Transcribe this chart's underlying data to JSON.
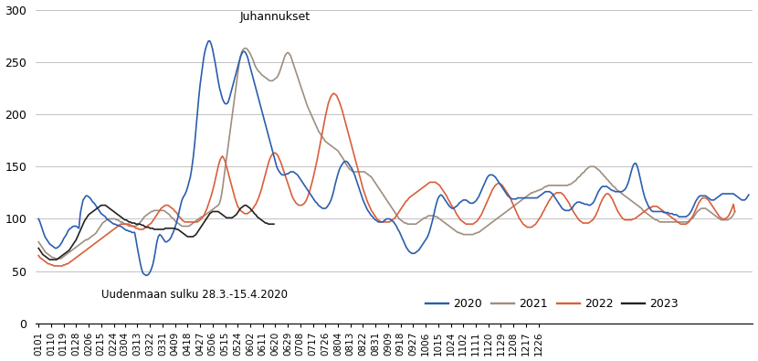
{
  "colors": {
    "2020": "#2B5EAE",
    "2021": "#9E8E7E",
    "2022": "#D95F3B",
    "2023": "#222222"
  },
  "annotation_juhannukset": "Juhannukset",
  "annotation_uudenmaan": "Uudenmaan sulku 28.3.-15.4.2020",
  "ylim": [
    0,
    300
  ],
  "yticks": [
    0,
    50,
    100,
    150,
    200,
    250,
    300
  ],
  "x_labels": [
    "0101",
    "0110",
    "0119",
    "0128",
    "0206",
    "0215",
    "0224",
    "0304",
    "0313",
    "0322",
    "0331",
    "0409",
    "0418",
    "0427",
    "0506",
    "0515",
    "0524",
    "0602",
    "0611",
    "0620",
    "0629",
    "0708",
    "0717",
    "0726",
    "0804",
    "0813",
    "0822",
    "0831",
    "0909",
    "0918",
    "0927",
    "1006",
    "1015",
    "1024",
    "1102",
    "1111",
    "1120",
    "1129",
    "1208",
    "1217",
    "1226"
  ],
  "background_color": "#ffffff",
  "grid_color": "#aaaaaa",
  "linewidth": 1.2,
  "series_2020": [
    100,
    97,
    93,
    89,
    85,
    82,
    80,
    78,
    76,
    75,
    74,
    73,
    72,
    72,
    73,
    74,
    76,
    78,
    81,
    83,
    85,
    88,
    90,
    91,
    92,
    93,
    93,
    93,
    92,
    91,
    105,
    112,
    118,
    120,
    122,
    122,
    121,
    120,
    118,
    116,
    115,
    113,
    111,
    109,
    107,
    105,
    104,
    103,
    102,
    100,
    99,
    98,
    97,
    96,
    95,
    95,
    94,
    94,
    93,
    93,
    92,
    91,
    90,
    89,
    89,
    88,
    88,
    87,
    87,
    87,
    80,
    72,
    65,
    58,
    52,
    48,
    47,
    46,
    46,
    47,
    49,
    52,
    56,
    62,
    70,
    78,
    83,
    85,
    84,
    82,
    80,
    78,
    78,
    79,
    80,
    82,
    85,
    88,
    92,
    96,
    101,
    107,
    113,
    118,
    121,
    123,
    126,
    130,
    135,
    140,
    148,
    158,
    170,
    185,
    200,
    215,
    228,
    238,
    248,
    257,
    263,
    267,
    270,
    270,
    267,
    262,
    255,
    248,
    240,
    232,
    225,
    220,
    215,
    212,
    210,
    210,
    211,
    215,
    220,
    225,
    230,
    235,
    240,
    245,
    250,
    255,
    258,
    260,
    260,
    258,
    255,
    250,
    245,
    240,
    235,
    230,
    225,
    220,
    215,
    210,
    205,
    200,
    195,
    190,
    185,
    180,
    175,
    170,
    165,
    160,
    155,
    150,
    147,
    145,
    143,
    142,
    142,
    142,
    143,
    143,
    144,
    145,
    145,
    145,
    144,
    143,
    142,
    140,
    138,
    136,
    134,
    132,
    130,
    128,
    126,
    124,
    122,
    120,
    118,
    116,
    115,
    113,
    112,
    111,
    110,
    110,
    110,
    111,
    113,
    115,
    118,
    122,
    127,
    133,
    138,
    143,
    147,
    150,
    152,
    154,
    155,
    155,
    154,
    152,
    150,
    148,
    145,
    142,
    138,
    134,
    130,
    126,
    122,
    118,
    115,
    112,
    109,
    107,
    105,
    103,
    102,
    100,
    99,
    98,
    97,
    97,
    97,
    97,
    98,
    99,
    100,
    100,
    100,
    99,
    98,
    97,
    95,
    93,
    90,
    88,
    85,
    82,
    79,
    76,
    73,
    71,
    69,
    68,
    67,
    67,
    67,
    68,
    69,
    70,
    72,
    74,
    76,
    78,
    80,
    82,
    85,
    89,
    94,
    99,
    105,
    111,
    116,
    120,
    122,
    123,
    122,
    120,
    118,
    116,
    114,
    112,
    111,
    110,
    110,
    111,
    112,
    113,
    115,
    116,
    117,
    118,
    118,
    118,
    117,
    116,
    115,
    115,
    115,
    116,
    117,
    119,
    121,
    124,
    127,
    130,
    133,
    136,
    139,
    141,
    142,
    142,
    142,
    141,
    140,
    138,
    136,
    134,
    132,
    130,
    128,
    126,
    124,
    122,
    121,
    120,
    119,
    119,
    119,
    119,
    120,
    120,
    120,
    120,
    120,
    120,
    120,
    120,
    120,
    120,
    120,
    120,
    120,
    120,
    120,
    121,
    122,
    123,
    124,
    125,
    126,
    126,
    126,
    126,
    125,
    124,
    122,
    120,
    118,
    116,
    114,
    112,
    110,
    109,
    108,
    108,
    108,
    108,
    109,
    110,
    112,
    114,
    115,
    116,
    116,
    116,
    115,
    115,
    114,
    114,
    114,
    113,
    113,
    114,
    115,
    117,
    120,
    123,
    126,
    128,
    130,
    131,
    131,
    131,
    131,
    130,
    129,
    128,
    127,
    127,
    126,
    126,
    126,
    126,
    126,
    126,
    127,
    128,
    130,
    133,
    137,
    142,
    147,
    151,
    153,
    153,
    150,
    145,
    139,
    133,
    127,
    122,
    118,
    115,
    112,
    110,
    108,
    107,
    107,
    107,
    107,
    107,
    107,
    107,
    107,
    106,
    106,
    106,
    106,
    105,
    105,
    105,
    104,
    104,
    104,
    103,
    102,
    102,
    102,
    102,
    102,
    102,
    103,
    104,
    106,
    108,
    111,
    114,
    117,
    119,
    121,
    122,
    122,
    122,
    122,
    122,
    121,
    120,
    119,
    118,
    118,
    118,
    119,
    120,
    121,
    122,
    123,
    124,
    124,
    124,
    124,
    124,
    124,
    124,
    124,
    124,
    123,
    122,
    121,
    120,
    119,
    118,
    118,
    118,
    119,
    121,
    123
  ],
  "series_2021": [
    78,
    76,
    74,
    72,
    70,
    68,
    67,
    66,
    65,
    64,
    63,
    63,
    62,
    62,
    62,
    62,
    62,
    63,
    64,
    65,
    66,
    67,
    68,
    69,
    70,
    71,
    72,
    73,
    74,
    75,
    76,
    77,
    78,
    79,
    80,
    80,
    81,
    82,
    83,
    84,
    85,
    86,
    88,
    90,
    92,
    94,
    96,
    97,
    98,
    99,
    100,
    100,
    100,
    100,
    100,
    100,
    99,
    99,
    98,
    97,
    97,
    96,
    95,
    95,
    94,
    93,
    93,
    93,
    93,
    93,
    93,
    94,
    95,
    97,
    98,
    100,
    102,
    103,
    104,
    105,
    106,
    107,
    107,
    108,
    108,
    108,
    108,
    108,
    108,
    108,
    108,
    107,
    106,
    105,
    104,
    102,
    101,
    100,
    98,
    97,
    96,
    95,
    94,
    93,
    93,
    93,
    93,
    93,
    93,
    94,
    95,
    96,
    97,
    98,
    99,
    100,
    101,
    102,
    102,
    103,
    104,
    105,
    106,
    107,
    108,
    109,
    110,
    111,
    112,
    113,
    115,
    120,
    128,
    138,
    148,
    158,
    168,
    178,
    188,
    198,
    208,
    218,
    228,
    238,
    248,
    255,
    260,
    262,
    263,
    263,
    262,
    260,
    258,
    255,
    252,
    248,
    245,
    243,
    241,
    240,
    238,
    237,
    236,
    235,
    234,
    233,
    232,
    232,
    232,
    233,
    234,
    235,
    237,
    240,
    244,
    248,
    252,
    256,
    258,
    259,
    258,
    256,
    252,
    248,
    244,
    240,
    236,
    232,
    228,
    224,
    220,
    216,
    212,
    208,
    205,
    202,
    199,
    196,
    193,
    190,
    187,
    184,
    182,
    180,
    178,
    176,
    174,
    173,
    172,
    171,
    170,
    169,
    168,
    167,
    166,
    165,
    163,
    161,
    159,
    157,
    154,
    152,
    150,
    148,
    147,
    146,
    145,
    145,
    145,
    145,
    145,
    145,
    145,
    145,
    145,
    144,
    143,
    142,
    141,
    140,
    138,
    136,
    134,
    132,
    130,
    128,
    126,
    124,
    122,
    120,
    118,
    116,
    114,
    112,
    110,
    108,
    106,
    104,
    102,
    100,
    99,
    98,
    97,
    96,
    96,
    95,
    95,
    95,
    95,
    95,
    95,
    95,
    96,
    97,
    98,
    99,
    100,
    101,
    101,
    102,
    103,
    103,
    103,
    103,
    103,
    102,
    102,
    101,
    100,
    99,
    98,
    97,
    96,
    95,
    94,
    93,
    92,
    91,
    90,
    89,
    88,
    87,
    87,
    86,
    86,
    85,
    85,
    85,
    85,
    85,
    85,
    85,
    85,
    86,
    86,
    87,
    87,
    88,
    89,
    90,
    91,
    92,
    93,
    94,
    95,
    96,
    97,
    98,
    99,
    100,
    101,
    102,
    103,
    104,
    105,
    106,
    107,
    108,
    109,
    110,
    111,
    112,
    113,
    114,
    115,
    116,
    117,
    118,
    119,
    120,
    121,
    122,
    123,
    124,
    125,
    125,
    126,
    126,
    127,
    127,
    128,
    128,
    129,
    130,
    131,
    131,
    132,
    132,
    132,
    132,
    132,
    132,
    132,
    132,
    132,
    132,
    132,
    132,
    132,
    132,
    132,
    133,
    133,
    134,
    135,
    136,
    137,
    139,
    140,
    141,
    143,
    144,
    145,
    147,
    148,
    149,
    150,
    150,
    150,
    150,
    149,
    148,
    147,
    146,
    144,
    143,
    141,
    140,
    138,
    137,
    135,
    134,
    132,
    131,
    130,
    128,
    127,
    126,
    125,
    124,
    123,
    122,
    121,
    120,
    119,
    118,
    117,
    116,
    115,
    114,
    113,
    112,
    111,
    110,
    108,
    107,
    106,
    105,
    104,
    103,
    102,
    101,
    100,
    99,
    99,
    98,
    97,
    97,
    97,
    97,
    97,
    97,
    97,
    97,
    97,
    97,
    97,
    97,
    97,
    97,
    97,
    97,
    97,
    97,
    97,
    97,
    97,
    98,
    99,
    100,
    101,
    103,
    105,
    107,
    108,
    109,
    110,
    110,
    110,
    110,
    109,
    108,
    107,
    106,
    105,
    104,
    103,
    102,
    101,
    100,
    99,
    99,
    99,
    99,
    99,
    99,
    100,
    101,
    102,
    104,
    107
  ],
  "series_2022": [
    65,
    63,
    62,
    61,
    60,
    59,
    58,
    57,
    57,
    56,
    56,
    55,
    55,
    55,
    55,
    55,
    55,
    55,
    56,
    56,
    57,
    57,
    58,
    59,
    60,
    61,
    62,
    63,
    64,
    65,
    66,
    67,
    68,
    69,
    70,
    71,
    72,
    73,
    74,
    75,
    76,
    77,
    78,
    79,
    80,
    81,
    82,
    83,
    84,
    85,
    86,
    87,
    88,
    89,
    90,
    91,
    92,
    93,
    94,
    95,
    95,
    95,
    95,
    95,
    95,
    95,
    94,
    93,
    93,
    92,
    91,
    91,
    90,
    90,
    90,
    90,
    91,
    92,
    93,
    94,
    95,
    96,
    98,
    100,
    102,
    104,
    106,
    108,
    110,
    111,
    112,
    113,
    113,
    113,
    112,
    111,
    110,
    109,
    107,
    106,
    104,
    102,
    101,
    99,
    98,
    97,
    97,
    97,
    97,
    97,
    97,
    97,
    97,
    97,
    97,
    98,
    99,
    100,
    102,
    104,
    107,
    110,
    114,
    118,
    122,
    127,
    132,
    138,
    144,
    150,
    155,
    158,
    160,
    158,
    155,
    150,
    145,
    140,
    135,
    130,
    125,
    120,
    116,
    112,
    110,
    108,
    107,
    106,
    105,
    105,
    105,
    106,
    107,
    108,
    110,
    112,
    114,
    117,
    120,
    124,
    128,
    133,
    138,
    143,
    148,
    153,
    157,
    160,
    162,
    163,
    163,
    162,
    160,
    157,
    154,
    150,
    146,
    142,
    138,
    134,
    130,
    126,
    122,
    119,
    117,
    115,
    114,
    113,
    113,
    113,
    114,
    115,
    117,
    120,
    124,
    128,
    133,
    138,
    144,
    150,
    156,
    163,
    170,
    177,
    184,
    191,
    198,
    204,
    210,
    214,
    217,
    219,
    220,
    219,
    218,
    215,
    212,
    208,
    204,
    199,
    194,
    189,
    184,
    179,
    174,
    169,
    164,
    159,
    154,
    149,
    144,
    139,
    134,
    129,
    125,
    121,
    117,
    114,
    111,
    108,
    106,
    104,
    102,
    100,
    99,
    98,
    97,
    97,
    97,
    97,
    97,
    97,
    97,
    98,
    99,
    100,
    101,
    103,
    105,
    107,
    109,
    111,
    113,
    115,
    117,
    118,
    120,
    121,
    122,
    123,
    124,
    125,
    126,
    127,
    128,
    129,
    130,
    131,
    132,
    133,
    134,
    135,
    135,
    135,
    135,
    135,
    134,
    133,
    132,
    130,
    128,
    126,
    124,
    122,
    119,
    117,
    114,
    112,
    110,
    108,
    105,
    103,
    101,
    99,
    98,
    97,
    96,
    95,
    95,
    95,
    95,
    95,
    95,
    96,
    97,
    98,
    100,
    102,
    104,
    107,
    110,
    113,
    116,
    119,
    122,
    125,
    128,
    130,
    132,
    133,
    134,
    134,
    133,
    132,
    130,
    128,
    126,
    124,
    122,
    119,
    116,
    113,
    110,
    107,
    104,
    101,
    99,
    97,
    95,
    94,
    93,
    92,
    92,
    92,
    92,
    93,
    94,
    95,
    97,
    99,
    101,
    103,
    106,
    108,
    111,
    113,
    116,
    118,
    120,
    122,
    123,
    124,
    125,
    125,
    125,
    125,
    124,
    123,
    121,
    119,
    117,
    115,
    112,
    110,
    107,
    105,
    103,
    101,
    99,
    98,
    97,
    96,
    96,
    96,
    96,
    96,
    97,
    98,
    99,
    101,
    103,
    106,
    109,
    113,
    116,
    119,
    121,
    123,
    124,
    124,
    123,
    121,
    119,
    116,
    113,
    110,
    107,
    105,
    103,
    101,
    100,
    99,
    99,
    99,
    99,
    99,
    99,
    100,
    100,
    101,
    102,
    103,
    104,
    105,
    106,
    107,
    108,
    109,
    110,
    111,
    111,
    112,
    112,
    112,
    112,
    111,
    110,
    109,
    108,
    107,
    106,
    105,
    104,
    103,
    102,
    101,
    100,
    99,
    98,
    97,
    96,
    95,
    95,
    95,
    95,
    95,
    96,
    97,
    99,
    101,
    103,
    106,
    109,
    112,
    115,
    117,
    119,
    120,
    120,
    120,
    119,
    118,
    116,
    114,
    112,
    110,
    108,
    106,
    104,
    102,
    101,
    100,
    100,
    100,
    101,
    102,
    104,
    107,
    110,
    114,
    107
  ],
  "series_2023": [
    72,
    70,
    68,
    66,
    65,
    64,
    63,
    62,
    61,
    61,
    61,
    61,
    61,
    61,
    62,
    63,
    64,
    65,
    66,
    67,
    68,
    69,
    70,
    72,
    74,
    76,
    78,
    80,
    83,
    86,
    89,
    92,
    95,
    98,
    100,
    102,
    104,
    105,
    106,
    107,
    108,
    109,
    110,
    111,
    112,
    113,
    113,
    113,
    113,
    112,
    111,
    110,
    109,
    108,
    107,
    106,
    105,
    104,
    103,
    102,
    101,
    100,
    99,
    99,
    98,
    97,
    97,
    96,
    96,
    96,
    95,
    95,
    95,
    95,
    94,
    94,
    93,
    92,
    92,
    92,
    91,
    91,
    91,
    90,
    90,
    90,
    90,
    90,
    90,
    90,
    90,
    91,
    91,
    91,
    91,
    91,
    91,
    91,
    91,
    90,
    90,
    89,
    88,
    87,
    86,
    85,
    84,
    83,
    83,
    83,
    83,
    83,
    84,
    85,
    87,
    89,
    91,
    93,
    95,
    97,
    99,
    101,
    103,
    105,
    106,
    107,
    107,
    107,
    107,
    107,
    106,
    105,
    104,
    103,
    102,
    101,
    101,
    101,
    101,
    101,
    102,
    103,
    104,
    106,
    108,
    110,
    111,
    112,
    113,
    113,
    112,
    111,
    110,
    108,
    107,
    105,
    104,
    102,
    101,
    100,
    99,
    98,
    97,
    96,
    96,
    95,
    95,
    95,
    95,
    95,
    null,
    null,
    null,
    null,
    null,
    null,
    null,
    null,
    null,
    null,
    null,
    null,
    null,
    null,
    null,
    null,
    null,
    null,
    null,
    null,
    null,
    null,
    null,
    null,
    null,
    null,
    null,
    null,
    null,
    null,
    null,
    null,
    null,
    null,
    null,
    null,
    null,
    null,
    null,
    null,
    null,
    null,
    null,
    null,
    null,
    null,
    null,
    null,
    null,
    null,
    null,
    null,
    null,
    null,
    null,
    null,
    null,
    null,
    null,
    null,
    null,
    null,
    null,
    null,
    null,
    null,
    null,
    null,
    null,
    null,
    null,
    null,
    null,
    null,
    null,
    null,
    null,
    null,
    null,
    null,
    null,
    null,
    null,
    null,
    null,
    null,
    null,
    null,
    null,
    null,
    null,
    null,
    null,
    null,
    null,
    null,
    null,
    null,
    null,
    null,
    null,
    null,
    null,
    null,
    null,
    null,
    null,
    null,
    null,
    null,
    null,
    null,
    null,
    null,
    null,
    null,
    null,
    null,
    null,
    null,
    null,
    null,
    null,
    null,
    null,
    null,
    null,
    null,
    null,
    null,
    null,
    null,
    null,
    null,
    null,
    null,
    null,
    null,
    null,
    null,
    null,
    null,
    null,
    null,
    null,
    null,
    null,
    null,
    null,
    null,
    null,
    null,
    null,
    null,
    null,
    null,
    null,
    null,
    null,
    null,
    null,
    null,
    null,
    null,
    null,
    null,
    null,
    null,
    null,
    null,
    null,
    null,
    null,
    null,
    null,
    null,
    null,
    null,
    null,
    null,
    null,
    null,
    null,
    null,
    null,
    null,
    null,
    null,
    null,
    null,
    null,
    null,
    null,
    null,
    null,
    null,
    null,
    null,
    null,
    null,
    null,
    null,
    null,
    null,
    null,
    null,
    null,
    null,
    null,
    null,
    null,
    null,
    null,
    null,
    null,
    null,
    null,
    null,
    null,
    null,
    null,
    null,
    null,
    null,
    null,
    null,
    null,
    null,
    null,
    null,
    null,
    null,
    null,
    null,
    null,
    null,
    null,
    null,
    null,
    null,
    null,
    null,
    null,
    null,
    null,
    null,
    null,
    null,
    null,
    null,
    null,
    null,
    null,
    null,
    null,
    null,
    null,
    null,
    null,
    null,
    null,
    null,
    null,
    null,
    null,
    null,
    null,
    null,
    null,
    null,
    null,
    null,
    null,
    null,
    null,
    null,
    null,
    null,
    null,
    null,
    null,
    null,
    null,
    null,
    null,
    null,
    null,
    null,
    null,
    null,
    null,
    null,
    null,
    null,
    null,
    null,
    null,
    null,
    null,
    null,
    null,
    null,
    null,
    null,
    null,
    null,
    null,
    null,
    null,
    null,
    null,
    null,
    null,
    null,
    null,
    null,
    null,
    null,
    null,
    null,
    null,
    null,
    null,
    null,
    null,
    null,
    null,
    null,
    null,
    null,
    null
  ]
}
